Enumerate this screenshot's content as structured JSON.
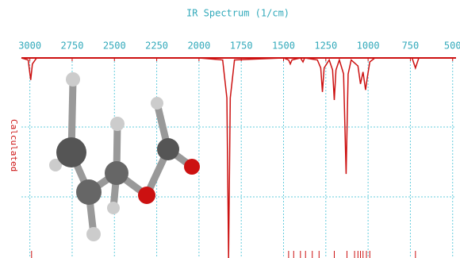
{
  "chart_data": {
    "type": "line",
    "title": "IR Spectrum (1/cm)",
    "y_label": "Calculated",
    "xlim": [
      3050,
      480
    ],
    "ylim": [
      0,
      100
    ],
    "xticks": [
      3000,
      2750,
      2500,
      2250,
      2000,
      1750,
      1500,
      1250,
      1000,
      750,
      500
    ],
    "grid": true,
    "x": [
      3050,
      3010,
      2995,
      2985,
      2960,
      2000,
      1860,
      1835,
      1825,
      1815,
      1790,
      1500,
      1470,
      1460,
      1450,
      1400,
      1385,
      1375,
      1300,
      1280,
      1270,
      1260,
      1230,
      1210,
      1200,
      1190,
      1170,
      1145,
      1130,
      1118,
      1100,
      1060,
      1045,
      1030,
      1015,
      1005,
      990,
      960,
      740,
      720,
      700,
      480
    ],
    "series": [
      {
        "color": "#cc1111",
        "values": [
          100,
          99,
          89,
          97,
          100,
          100,
          99,
          80,
          0,
          80,
          99,
          100,
          99,
          97,
          99,
          100,
          98,
          100,
          99,
          95,
          83,
          95,
          99,
          94,
          79,
          94,
          99,
          92,
          42,
          92,
          99,
          96,
          87,
          93,
          84,
          90,
          98,
          100,
          100,
          95,
          100,
          100
        ]
      }
    ],
    "peaks": [
      2990,
      1825,
      1470,
      1440,
      1400,
      1370,
      1330,
      1290,
      1200,
      1125,
      1080,
      1060,
      1045,
      1030,
      1010,
      990,
      720
    ]
  }
}
